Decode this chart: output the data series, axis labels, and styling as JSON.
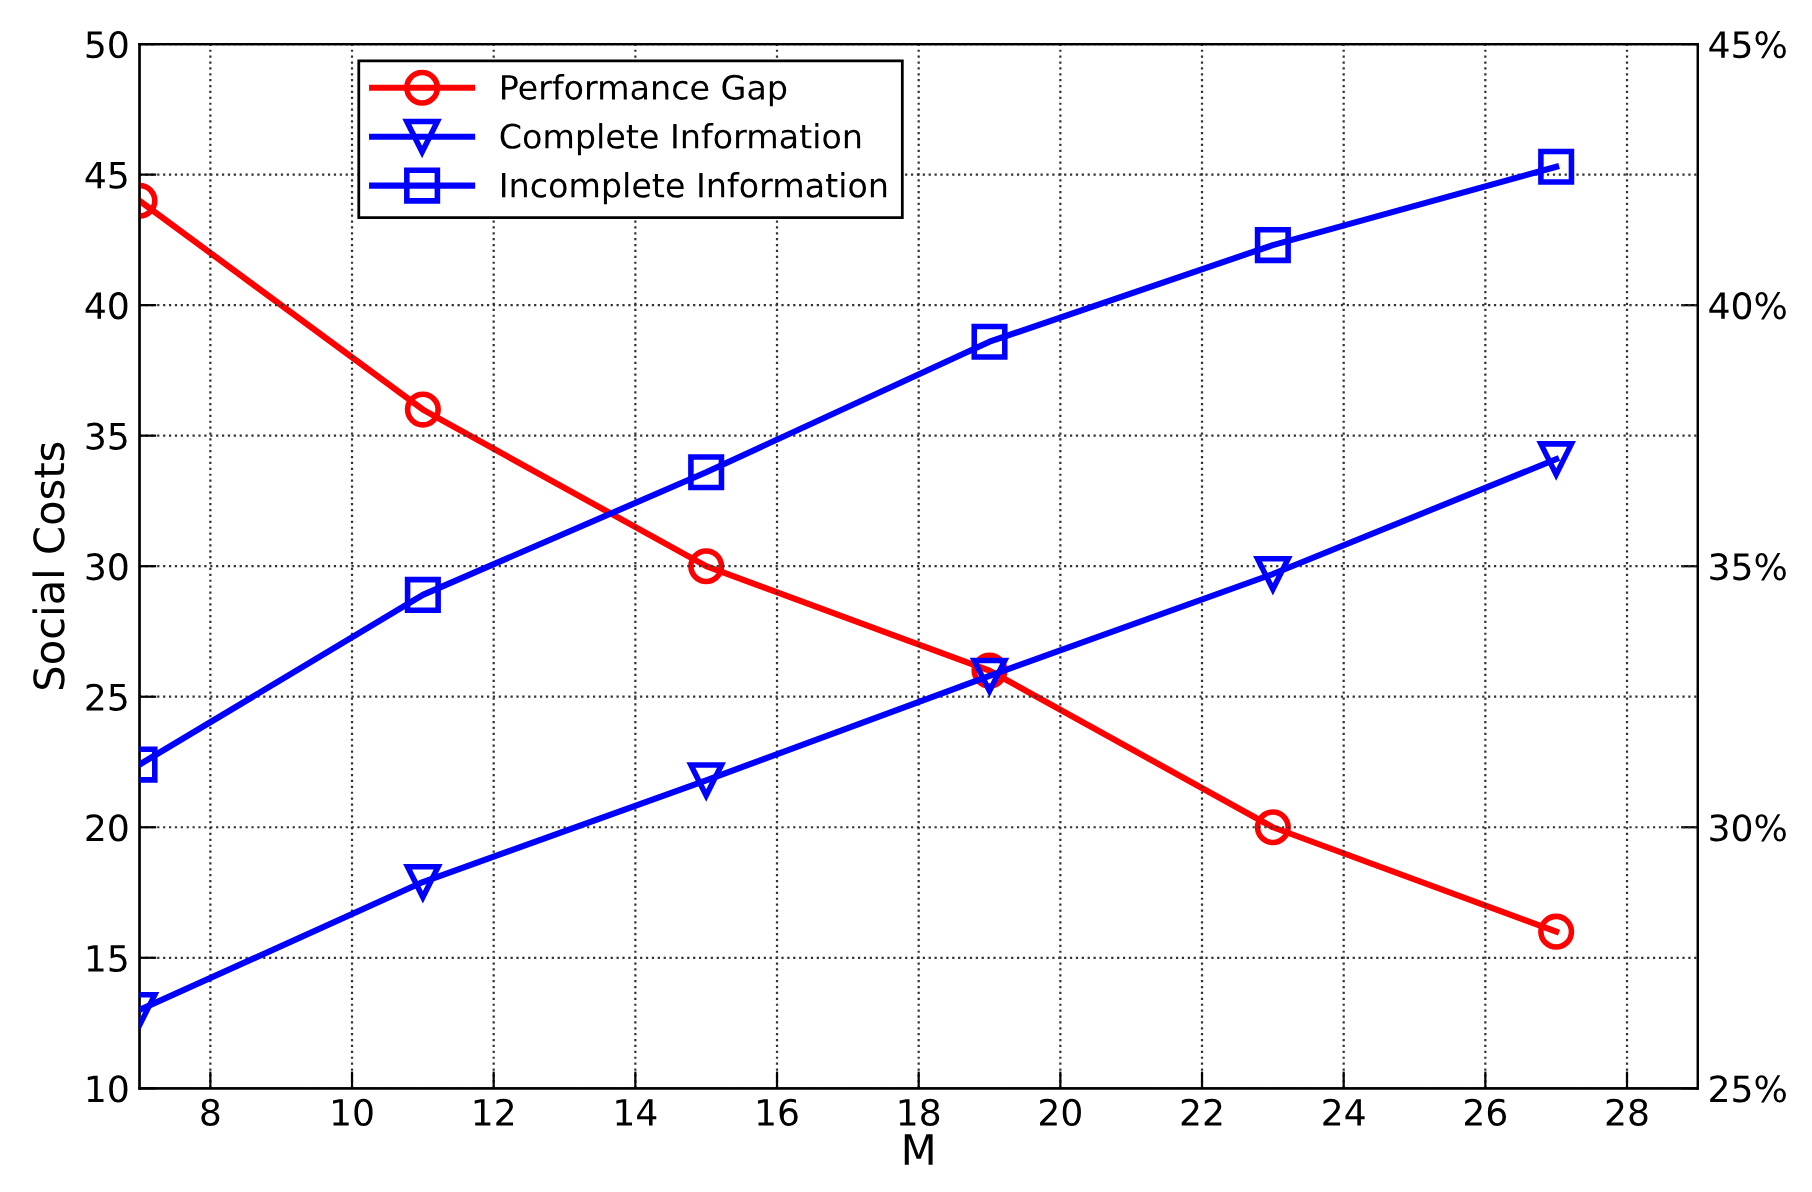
{
  "chart_data": {
    "type": "line",
    "xlabel": "M",
    "ylabel": "Social Costs",
    "x": [
      7,
      11,
      15,
      19,
      23,
      27
    ],
    "series": [
      {
        "name": "Performance Gap",
        "color": "#ff0000",
        "marker": "circle",
        "axis": "y2",
        "values": [
          42,
          38,
          35,
          33,
          30,
          28
        ]
      },
      {
        "name": "Complete Information",
        "color": "#0000ff",
        "marker": "triangle",
        "values": [
          13,
          17.9,
          21.8,
          25.8,
          29.7,
          34.1
        ]
      },
      {
        "name": "Incomplete Information",
        "color": "#0000ff",
        "marker": "square",
        "values": [
          22.4,
          28.9,
          33.6,
          38.6,
          42.3,
          45.3
        ]
      }
    ],
    "xlim": [
      7,
      29
    ],
    "xticks": [
      8,
      10,
      12,
      14,
      16,
      18,
      20,
      22,
      24,
      26,
      28
    ],
    "ylim": [
      10,
      50
    ],
    "yticks": [
      10,
      15,
      20,
      25,
      30,
      35,
      40,
      45,
      50
    ],
    "y2lim": [
      25,
      45
    ],
    "y2ticks": [
      {
        "value": 25,
        "label": "25%"
      },
      {
        "value": 30,
        "label": "30%"
      },
      {
        "value": 35,
        "label": "35%"
      },
      {
        "value": 40,
        "label": "40%"
      },
      {
        "value": 45,
        "label": "45%"
      }
    ],
    "grid": true,
    "legend": "top left",
    "line_style": "solid"
  }
}
